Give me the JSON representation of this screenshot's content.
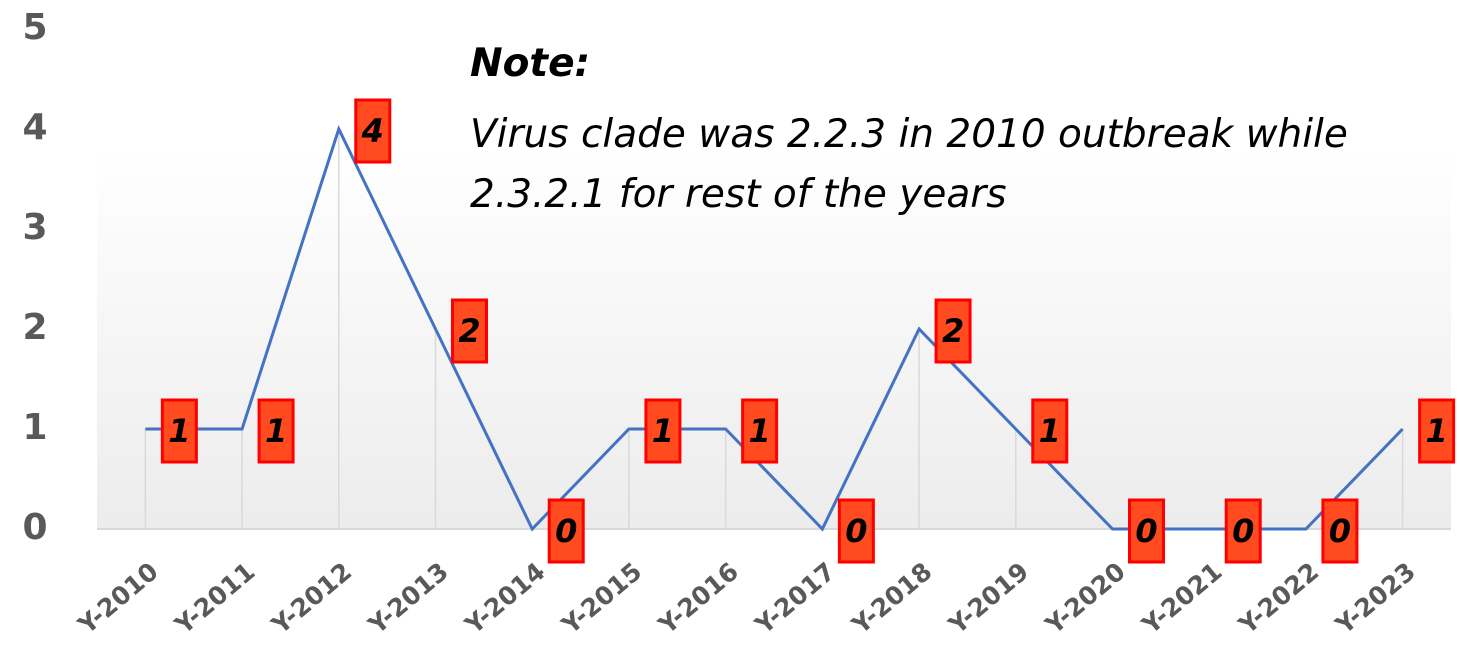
{
  "chart_data": {
    "type": "line",
    "categories": [
      "Y-2010",
      "Y-2011",
      "Y-2012",
      "Y-2013",
      "Y-2014",
      "Y-2015",
      "Y-2016",
      "Y-2017",
      "Y-2018",
      "Y-2019",
      "Y-2020",
      "Y-2021",
      "Y-2022",
      "Y-2023"
    ],
    "values": [
      1,
      1,
      4,
      2,
      0,
      1,
      1,
      0,
      2,
      1,
      0,
      0,
      0,
      1
    ],
    "color": "#4472c4",
    "ylim": [
      0,
      5
    ],
    "yticks": [
      0,
      1,
      2,
      3,
      4,
      5
    ],
    "grid": false,
    "annotation": {
      "title": "Note:",
      "lines": [
        "Virus clade was 2.2.3 in 2010 outbreak while",
        "2.3.2.1 for rest of the years"
      ]
    }
  }
}
